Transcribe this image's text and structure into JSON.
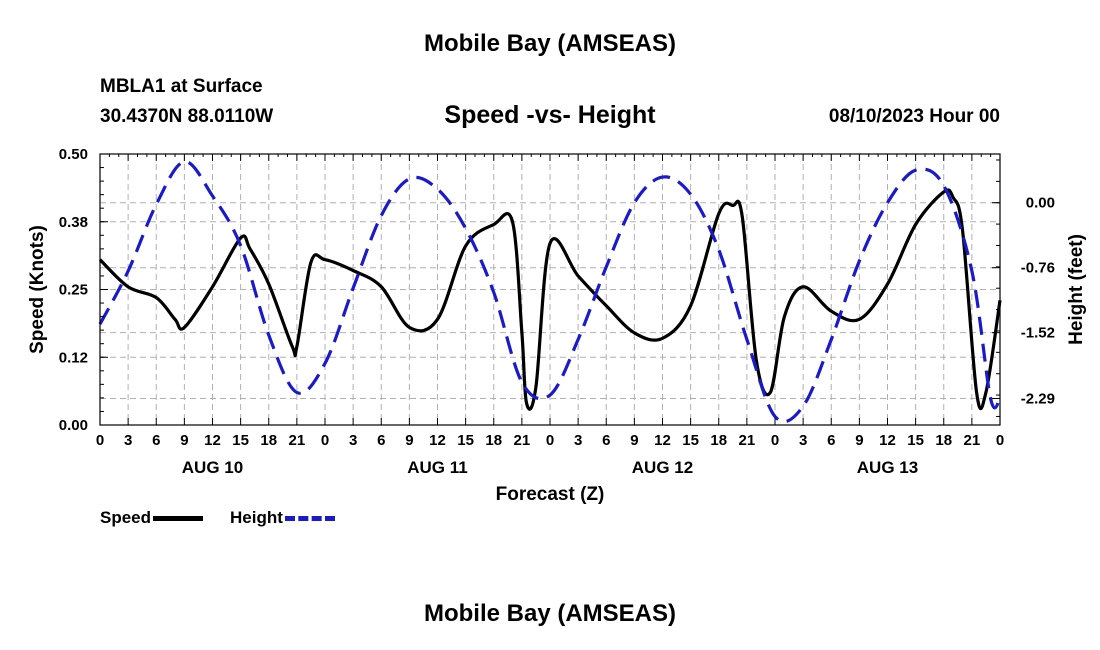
{
  "header": {
    "title": "Mobile Bay (AMSEAS)",
    "station": "MBLA1 at Surface",
    "coords": "30.4370N  88.0110W",
    "subtitle": "Speed -vs- Height",
    "datetime": "08/10/2023 Hour 00"
  },
  "footer": {
    "title": "Mobile Bay (AMSEAS)"
  },
  "legend": {
    "speed_label": "Speed",
    "height_label": "Height"
  },
  "colors": {
    "speed": "#000000",
    "height": "#1a1acc",
    "grid": "#b0b0b0"
  },
  "chart_data": {
    "type": "line",
    "title": "Speed -vs- Height",
    "xlabel": "Forecast (Z)",
    "ylabel": "Speed (Knots)",
    "y2label": "Height (feet)",
    "xlim": [
      0,
      96
    ],
    "ylim": [
      0,
      0.5
    ],
    "y2lim": [
      -2.6,
      0.57
    ],
    "x_tick_labels": [
      "0",
      "3",
      "6",
      "9",
      "12",
      "15",
      "18",
      "21",
      "0",
      "3",
      "6",
      "9",
      "12",
      "15",
      "18",
      "21",
      "0",
      "3",
      "6",
      "9",
      "12",
      "15",
      "18",
      "21",
      "0",
      "3",
      "6",
      "9",
      "12",
      "15",
      "18",
      "21",
      "0"
    ],
    "day_labels": [
      {
        "label": "AUG 10",
        "x": 12
      },
      {
        "label": "AUG 11",
        "x": 36
      },
      {
        "label": "AUG 12",
        "x": 60
      },
      {
        "label": "AUG 13",
        "x": 84
      }
    ],
    "y_ticks": [
      "0.00",
      "0.12",
      "0.25",
      "0.38",
      "0.50"
    ],
    "y_tick_values": [
      0,
      0.125,
      0.25,
      0.375,
      0.5
    ],
    "y2_ticks": [
      "-2.29",
      "-1.52",
      "-0.76",
      "0.00"
    ],
    "y2_tick_values": [
      -2.29,
      -1.52,
      -0.76,
      0.0
    ],
    "series": [
      {
        "name": "Speed",
        "axis": "left",
        "x": [
          0,
          3,
          6,
          8,
          9,
          12,
          15,
          16,
          18,
          20.5,
          21,
          22.5,
          24,
          27,
          30,
          33,
          36,
          39,
          42,
          44,
          45,
          45.5,
          46.5,
          48,
          51,
          54,
          57,
          60,
          63,
          66,
          67.5,
          68.5,
          70,
          71.5,
          73,
          75,
          78,
          81,
          84,
          87,
          90,
          91,
          92,
          93.5,
          94.5,
          96
        ],
        "y": [
          0.305,
          0.255,
          0.235,
          0.195,
          0.18,
          0.255,
          0.345,
          0.325,
          0.26,
          0.145,
          0.145,
          0.3,
          0.305,
          0.285,
          0.255,
          0.18,
          0.195,
          0.33,
          0.37,
          0.375,
          0.17,
          0.04,
          0.07,
          0.335,
          0.275,
          0.22,
          0.17,
          0.16,
          0.22,
          0.39,
          0.405,
          0.385,
          0.12,
          0.06,
          0.2,
          0.255,
          0.21,
          0.195,
          0.26,
          0.37,
          0.43,
          0.42,
          0.36,
          0.06,
          0.06,
          0.23
        ]
      },
      {
        "name": "Height",
        "axis": "right",
        "x": [
          0,
          3,
          6,
          9,
          12,
          15,
          18,
          21,
          24,
          27,
          30,
          33,
          36,
          39,
          42,
          45,
          48,
          51,
          54,
          57,
          60,
          63,
          66,
          69,
          72,
          75,
          78,
          81,
          84,
          87,
          90,
          93,
          95,
          96
        ],
        "y": [
          -1.42,
          -0.8,
          -0.02,
          0.48,
          0.08,
          -0.5,
          -1.55,
          -2.22,
          -1.88,
          -1.0,
          -0.15,
          0.28,
          0.16,
          -0.3,
          -1.05,
          -2.1,
          -2.25,
          -1.6,
          -0.75,
          0.0,
          0.3,
          0.1,
          -0.55,
          -1.6,
          -2.5,
          -2.38,
          -1.6,
          -0.68,
          0.0,
          0.38,
          0.2,
          -0.8,
          -2.29,
          -2.29
        ]
      }
    ]
  }
}
